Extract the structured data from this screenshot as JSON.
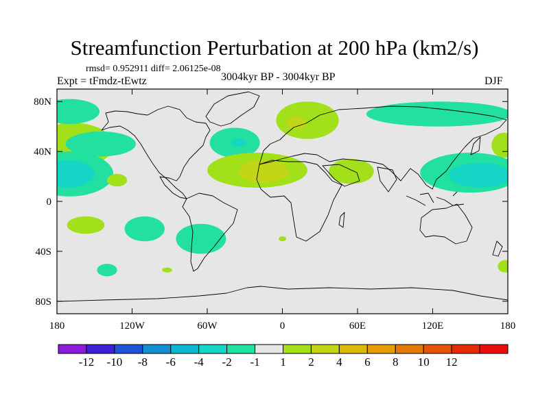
{
  "header": {
    "title": "Streamfunction Perturbation at 200 hPa (km2/s)",
    "stats": "rmsd= 0.952911 diff= 2.06125e-08",
    "left_label": "Expt = tFmdz-tEwtz",
    "center_label": "3004kyr BP - 3004kyr BP",
    "right_label": "DJF"
  },
  "chart_data": {
    "type": "heatmap",
    "title": "Streamfunction Perturbation at 200 hPa (km2/s)",
    "projection": "cylindrical-equidistant",
    "xlim": [
      -180,
      180
    ],
    "ylim": [
      -90,
      90
    ],
    "x_ticks": [
      {
        "value": -180,
        "label": "180"
      },
      {
        "value": -120,
        "label": "120W"
      },
      {
        "value": -60,
        "label": "60W"
      },
      {
        "value": 0,
        "label": "0"
      },
      {
        "value": 60,
        "label": "60E"
      },
      {
        "value": 120,
        "label": "120E"
      },
      {
        "value": 180,
        "label": "180"
      }
    ],
    "y_ticks": [
      {
        "value": 80,
        "label": "80N"
      },
      {
        "value": 40,
        "label": "40N"
      },
      {
        "value": 0,
        "label": "0"
      },
      {
        "value": -40,
        "label": "40S"
      },
      {
        "value": -80,
        "label": "80S"
      }
    ],
    "background_color": "#e6e6e6",
    "colorbar": {
      "colors": [
        "#8c1ad9",
        "#3d20d4",
        "#1b55d6",
        "#1190d8",
        "#0cb8cf",
        "#15d5c6",
        "#22e0a0",
        "#e6e6e6",
        "#a2e01a",
        "#c3d615",
        "#dcb908",
        "#e59b05",
        "#e37a05",
        "#e45406",
        "#e42b06",
        "#e60d0b"
      ],
      "levels": [
        -12,
        -10,
        -8,
        -6,
        -4,
        -2,
        -1,
        1,
        2,
        4,
        6,
        8,
        10,
        12
      ],
      "labels": [
        "-12",
        "-10",
        "-8",
        "-6",
        "-4",
        "-2",
        "-1",
        "1",
        "2",
        "4",
        "6",
        "8",
        "10",
        "12"
      ]
    },
    "anomalies": [
      {
        "lon": -167,
        "lat": 45,
        "rx": 22,
        "ry": 12,
        "value": 4
      },
      {
        "lon": -167,
        "lat": 45,
        "rx": 32,
        "ry": 18,
        "value": 1.5
      },
      {
        "lon": 177,
        "lat": 45,
        "rx": 10,
        "ry": 10,
        "value": 1.5
      },
      {
        "lon": -170,
        "lat": 22,
        "rx": 35,
        "ry": 18,
        "value": -1.5
      },
      {
        "lon": -172,
        "lat": 22,
        "rx": 22,
        "ry": 11,
        "value": -3
      },
      {
        "lon": -170,
        "lat": 72,
        "rx": 24,
        "ry": 10,
        "value": -1.5
      },
      {
        "lon": -145,
        "lat": 46,
        "rx": 28,
        "ry": 10,
        "value": -1.5
      },
      {
        "lon": -132,
        "lat": 17,
        "rx": 8,
        "ry": 5,
        "value": 1.5
      },
      {
        "lon": -38,
        "lat": 47,
        "rx": 20,
        "ry": 12,
        "value": -1.5
      },
      {
        "lon": -35,
        "lat": 47,
        "rx": 6,
        "ry": 3,
        "value": -3
      },
      {
        "lon": 20,
        "lat": 65,
        "rx": 25,
        "ry": 15,
        "value": 1.5
      },
      {
        "lon": 11,
        "lat": 63,
        "rx": 8,
        "ry": 5,
        "value": 3
      },
      {
        "lon": -20,
        "lat": 25,
        "rx": 40,
        "ry": 14,
        "value": 1.5
      },
      {
        "lon": -15,
        "lat": 24,
        "rx": 20,
        "ry": 9,
        "value": 3
      },
      {
        "lon": 55,
        "lat": 24,
        "rx": 18,
        "ry": 10,
        "value": 1.5
      },
      {
        "lon": 125,
        "lat": 70,
        "rx": 58,
        "ry": 10,
        "value": -1.5
      },
      {
        "lon": 150,
        "lat": 23,
        "rx": 40,
        "ry": 16,
        "value": -1.5
      },
      {
        "lon": 158,
        "lat": 21,
        "rx": 25,
        "ry": 10,
        "value": -3
      },
      {
        "lon": -157,
        "lat": -19,
        "rx": 15,
        "ry": 7,
        "value": 1.5
      },
      {
        "lon": -110,
        "lat": -22,
        "rx": 16,
        "ry": 10,
        "value": -1.5
      },
      {
        "lon": -65,
        "lat": -30,
        "rx": 20,
        "ry": 12,
        "value": -1.5
      },
      {
        "lon": -140,
        "lat": -55,
        "rx": 8,
        "ry": 5,
        "value": -1.5
      },
      {
        "lon": -92,
        "lat": -55,
        "rx": 4,
        "ry": 2,
        "value": 1.5
      },
      {
        "lon": 0,
        "lat": -30,
        "rx": 3,
        "ry": 2,
        "value": 1.5
      },
      {
        "lon": 178,
        "lat": -52,
        "rx": 6,
        "ry": 5,
        "value": 1.5
      }
    ]
  }
}
